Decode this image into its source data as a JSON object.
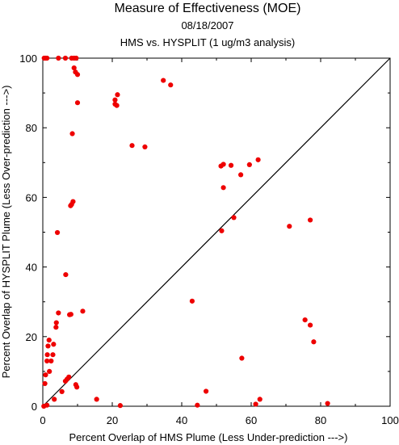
{
  "chart_data": {
    "type": "scatter",
    "title": "Measure of Effectiveness (MOE)",
    "subtitle_date": "08/18/2007",
    "subtitle": "HMS vs. HYSPLIT  (1 ug/m3 analysis)",
    "xlabel": "Percent Overlap of HMS Plume (Less Under-prediction --->)",
    "ylabel": "Percent Overlap of HYSPLIT Plume (Less Over-prediction --->)",
    "xlim": [
      0,
      100
    ],
    "ylim": [
      0,
      100
    ],
    "x_ticks": [
      "0",
      "20",
      "40",
      "60",
      "80",
      "100"
    ],
    "y_ticks": [
      "0",
      "20",
      "40",
      "60",
      "80",
      "100"
    ],
    "reference_line": "y = x",
    "grid": false,
    "legend": "none",
    "marker_color": "#ee0000",
    "points": [
      {
        "x": 0.4,
        "y": 100
      },
      {
        "x": 0.8,
        "y": 100
      },
      {
        "x": 1.2,
        "y": 100
      },
      {
        "x": 4.5,
        "y": 100
      },
      {
        "x": 6.5,
        "y": 100
      },
      {
        "x": 8.3,
        "y": 100
      },
      {
        "x": 9.0,
        "y": 100
      },
      {
        "x": 9.6,
        "y": 100
      },
      {
        "x": 9.0,
        "y": 97.2
      },
      {
        "x": 9.4,
        "y": 96.0
      },
      {
        "x": 10.0,
        "y": 95.3
      },
      {
        "x": 10.0,
        "y": 87.2
      },
      {
        "x": 8.5,
        "y": 78.3
      },
      {
        "x": 8.7,
        "y": 58.8
      },
      {
        "x": 8.3,
        "y": 58.0
      },
      {
        "x": 8.0,
        "y": 57.6
      },
      {
        "x": 4.2,
        "y": 49.9
      },
      {
        "x": 6.6,
        "y": 37.8
      },
      {
        "x": 11.5,
        "y": 27.3
      },
      {
        "x": 4.5,
        "y": 26.8
      },
      {
        "x": 8.1,
        "y": 26.4
      },
      {
        "x": 7.7,
        "y": 26.3
      },
      {
        "x": 3.9,
        "y": 24.0
      },
      {
        "x": 3.8,
        "y": 22.7
      },
      {
        "x": 1.8,
        "y": 19.0
      },
      {
        "x": 3.1,
        "y": 17.8
      },
      {
        "x": 1.5,
        "y": 17.3
      },
      {
        "x": 1.3,
        "y": 14.8
      },
      {
        "x": 2.9,
        "y": 14.8
      },
      {
        "x": 1.2,
        "y": 13.0
      },
      {
        "x": 2.4,
        "y": 13.0
      },
      {
        "x": 1.9,
        "y": 10.0
      },
      {
        "x": 0.8,
        "y": 9.0
      },
      {
        "x": 7.5,
        "y": 8.4
      },
      {
        "x": 7.0,
        "y": 7.8
      },
      {
        "x": 6.5,
        "y": 7.2
      },
      {
        "x": 0.6,
        "y": 6.5
      },
      {
        "x": 9.5,
        "y": 6.2
      },
      {
        "x": 9.8,
        "y": 5.5
      },
      {
        "x": 5.5,
        "y": 4.2
      },
      {
        "x": 3.3,
        "y": 2.0
      },
      {
        "x": 0.3,
        "y": 0.0
      },
      {
        "x": 1.2,
        "y": 0.3
      },
      {
        "x": 15.5,
        "y": 2.0
      },
      {
        "x": 22.3,
        "y": 0.2
      },
      {
        "x": 21.5,
        "y": 89.5
      },
      {
        "x": 20.8,
        "y": 88.0
      },
      {
        "x": 20.8,
        "y": 86.8
      },
      {
        "x": 21.3,
        "y": 86.4
      },
      {
        "x": 34.7,
        "y": 93.6
      },
      {
        "x": 36.8,
        "y": 92.3
      },
      {
        "x": 25.7,
        "y": 74.9
      },
      {
        "x": 29.4,
        "y": 74.5
      },
      {
        "x": 43.0,
        "y": 30.2
      },
      {
        "x": 44.5,
        "y": 0.3
      },
      {
        "x": 47.0,
        "y": 4.3
      },
      {
        "x": 51.3,
        "y": 69.0
      },
      {
        "x": 52.0,
        "y": 69.5
      },
      {
        "x": 54.2,
        "y": 69.2
      },
      {
        "x": 57.0,
        "y": 66.5
      },
      {
        "x": 59.5,
        "y": 69.4
      },
      {
        "x": 62.0,
        "y": 70.8
      },
      {
        "x": 52.0,
        "y": 62.8
      },
      {
        "x": 55.0,
        "y": 54.2
      },
      {
        "x": 51.5,
        "y": 50.4
      },
      {
        "x": 57.3,
        "y": 13.8
      },
      {
        "x": 61.3,
        "y": 0.6
      },
      {
        "x": 62.5,
        "y": 2.0
      },
      {
        "x": 71.0,
        "y": 51.7
      },
      {
        "x": 77.0,
        "y": 53.5
      },
      {
        "x": 75.5,
        "y": 24.8
      },
      {
        "x": 77.0,
        "y": 23.3
      },
      {
        "x": 78.0,
        "y": 18.5
      },
      {
        "x": 82.0,
        "y": 0.8
      }
    ]
  }
}
